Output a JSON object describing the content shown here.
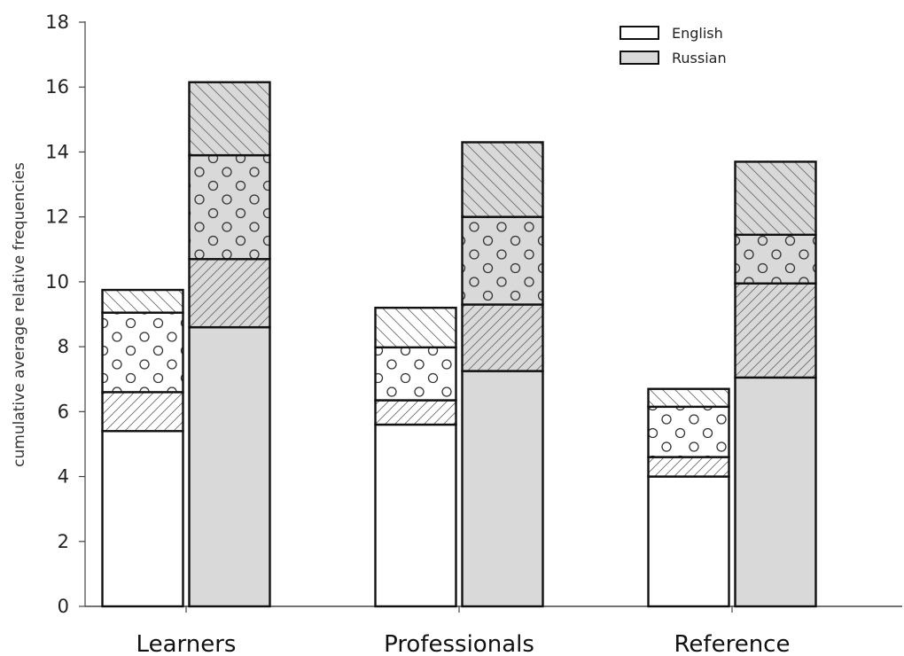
{
  "chart_data": {
    "type": "bar",
    "stacked": true,
    "grid": false,
    "legend_placement": "top-right",
    "title": "",
    "xlabel": "",
    "ylabel": "cumulative average relative frequencies",
    "ylim": [
      0,
      18
    ],
    "yticks": [
      0,
      2,
      4,
      6,
      8,
      10,
      12,
      14,
      16,
      18
    ],
    "categories": [
      "Learners",
      "Professionals",
      "Reference"
    ],
    "series": [
      {
        "name": "English",
        "color": "#ffffff",
        "cumulative_boundaries": [
          [
            5.4,
            6.6,
            9.05,
            9.75
          ],
          [
            5.6,
            6.35,
            7.98,
            9.2
          ],
          [
            4.0,
            4.6,
            6.15,
            6.7
          ]
        ]
      },
      {
        "name": "Russian",
        "color": "#d9d9d9",
        "cumulative_boundaries": [
          [
            8.6,
            10.7,
            13.9,
            16.15
          ],
          [
            7.25,
            9.3,
            12.0,
            14.3
          ],
          [
            7.05,
            9.95,
            11.45,
            13.7
          ]
        ]
      }
    ],
    "segment_patterns": [
      "plain",
      "diagonal-forward",
      "circles",
      "diagonal-back"
    ]
  }
}
